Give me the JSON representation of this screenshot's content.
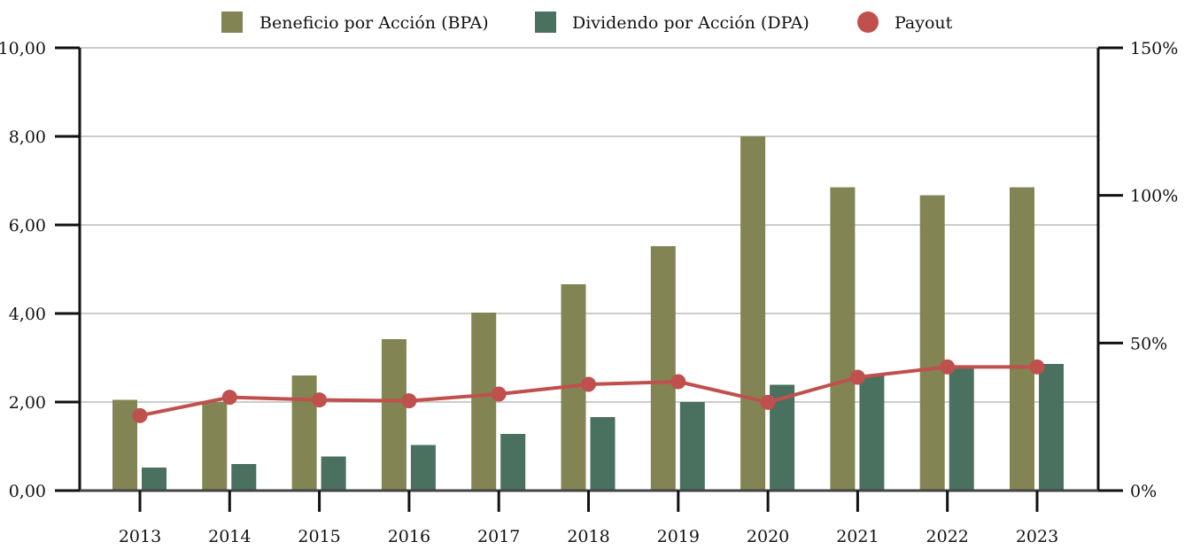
{
  "chart_data": {
    "type": "bar",
    "categories": [
      "2013",
      "2014",
      "2015",
      "2016",
      "2017",
      "2018",
      "2019",
      "2020",
      "2021",
      "2022",
      "2023"
    ],
    "series": [
      {
        "name": "Beneficio por Acción (BPA)",
        "kind": "bar",
        "axis": "left",
        "color": "#828453",
        "values": [
          2.05,
          2.0,
          2.6,
          3.42,
          4.02,
          4.66,
          5.52,
          8.0,
          6.85,
          6.67,
          6.85
        ]
      },
      {
        "name": "Dividendo por Acción (DPA)",
        "kind": "bar",
        "axis": "left",
        "color": "#4a7060",
        "values": [
          0.52,
          0.6,
          0.77,
          1.03,
          1.28,
          1.66,
          2.0,
          2.39,
          2.6,
          2.8,
          2.86
        ]
      },
      {
        "name": "Payout",
        "kind": "line",
        "axis": "right",
        "color": "#c0504d",
        "values": [
          25.4,
          31.6,
          30.7,
          30.4,
          32.7,
          36.0,
          36.9,
          29.9,
          38.4,
          41.9,
          41.9
        ]
      }
    ],
    "y_left": {
      "min": 0,
      "max": 10,
      "ticks": [
        0,
        2,
        4,
        6,
        8,
        10
      ],
      "tick_labels": [
        "0,00",
        "2,00",
        "4,00",
        "6,00",
        "8,00",
        "10,00"
      ]
    },
    "y_right": {
      "min": 0,
      "max": 150,
      "ticks": [
        0,
        50,
        100,
        150
      ],
      "tick_labels": [
        "0%",
        "50%",
        "100%",
        "150%"
      ]
    },
    "grid": true,
    "legend_position": "top-center",
    "title": "",
    "xlabel": "",
    "ylabel": ""
  }
}
